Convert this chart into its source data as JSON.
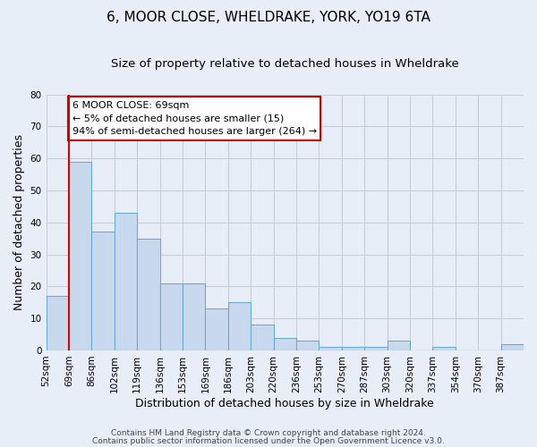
{
  "title": "6, MOOR CLOSE, WHELDRAKE, YORK, YO19 6TA",
  "subtitle": "Size of property relative to detached houses in Wheldrake",
  "xlabel": "Distribution of detached houses by size in Wheldrake",
  "ylabel": "Number of detached properties",
  "bin_labels": [
    "52sqm",
    "69sqm",
    "86sqm",
    "102sqm",
    "119sqm",
    "136sqm",
    "153sqm",
    "169sqm",
    "186sqm",
    "203sqm",
    "220sqm",
    "236sqm",
    "253sqm",
    "270sqm",
    "287sqm",
    "303sqm",
    "320sqm",
    "337sqm",
    "354sqm",
    "370sqm",
    "387sqm"
  ],
  "bar_heights": [
    17,
    59,
    37,
    43,
    35,
    21,
    21,
    13,
    15,
    8,
    4,
    3,
    1,
    1,
    1,
    3,
    0,
    1,
    0,
    0,
    2
  ],
  "bar_color": "#c8d9ee",
  "bar_edge_color": "#6aabd6",
  "red_line_x": 1,
  "ylim": [
    0,
    80
  ],
  "yticks": [
    0,
    10,
    20,
    30,
    40,
    50,
    60,
    70,
    80
  ],
  "annotation_title": "6 MOOR CLOSE: 69sqm",
  "annotation_line1": "← 5% of detached houses are smaller (15)",
  "annotation_line2": "94% of semi-detached houses are larger (264) →",
  "annotation_box_facecolor": "#ffffff",
  "annotation_box_edgecolor": "#cc0000",
  "footer_line1": "Contains HM Land Registry data © Crown copyright and database right 2024.",
  "footer_line2": "Contains public sector information licensed under the Open Government Licence v3.0.",
  "background_color": "#e8eef8",
  "plot_bg_color": "#e8eef8",
  "grid_color": "#c8cdd8",
  "title_fontsize": 11,
  "subtitle_fontsize": 9.5,
  "axis_label_fontsize": 9,
  "tick_fontsize": 7.5,
  "footer_fontsize": 6.5,
  "annotation_fontsize": 8
}
